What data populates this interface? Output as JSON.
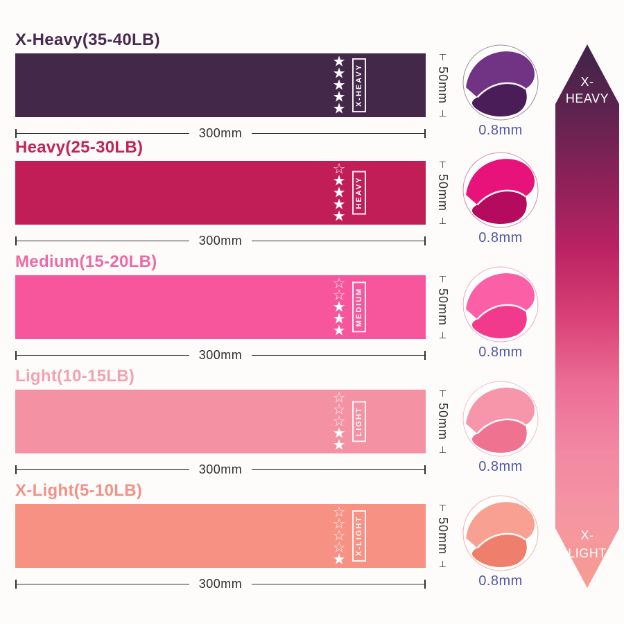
{
  "page": {
    "background": "#fdfcfb"
  },
  "dimension_caps": {
    "top": "⊤",
    "bottom": "⊥"
  },
  "thickness_text_color": "#5157a5",
  "bands": [
    {
      "name": "x-heavy",
      "title": "X-Heavy(35-40LB)",
      "tag": "X-HEAVY",
      "stars_filled": 5,
      "stars_total": 5,
      "color": "#44284a",
      "title_color": "#472a4d",
      "width_label": "300mm",
      "height_label": "50mm",
      "thickness_label": "0.8mm",
      "fold_main": "#713384",
      "fold_shade": "#4b1d58",
      "ring": "#9c8fa0"
    },
    {
      "name": "heavy",
      "title": "Heavy(25-30LB)",
      "tag": "HEAVY",
      "stars_filled": 4,
      "stars_total": 5,
      "color": "#c11e58",
      "title_color": "#c32359",
      "width_label": "300mm",
      "height_label": "50mm",
      "thickness_label": "0.8mm",
      "fold_main": "#e8127b",
      "fold_shade": "#b50b5f",
      "ring": "#d98aa6"
    },
    {
      "name": "medium",
      "title": "Medium(15-20LB)",
      "tag": "MEDIUM",
      "stars_filled": 3,
      "stars_total": 5,
      "color": "#f7569c",
      "title_color": "#ee6aa2",
      "width_label": "300mm",
      "height_label": "50mm",
      "thickness_label": "0.8mm",
      "fold_main": "#fb5fa6",
      "fold_shade": "#f23a8c",
      "ring": "#f0a8c4"
    },
    {
      "name": "light",
      "title": "Light(10-15LB)",
      "tag": "LIGHT",
      "stars_filled": 2,
      "stars_total": 5,
      "color": "#f492a3",
      "title_color": "#f2a2b1",
      "width_label": "300mm",
      "height_label": "50mm",
      "thickness_label": "0.8mm",
      "fold_main": "#f795aa",
      "fold_shade": "#ef7390",
      "ring": "#f3bcc6"
    },
    {
      "name": "x-light",
      "title": "X-Light(5-10LB)",
      "tag": "X-LIGHT",
      "stars_filled": 1,
      "stars_total": 5,
      "color": "#f69184",
      "title_color": "#f29186",
      "width_label": "300mm",
      "height_label": "50mm",
      "thickness_label": "0.8mm",
      "fold_main": "#f8a092",
      "fold_shade": "#ef7e6d",
      "ring": "#f5b3aa"
    }
  ],
  "arrow": {
    "top_line1": "X-",
    "top_line2": "HEAVY",
    "bottom_line1": "X-",
    "bottom_line2": "LIGHT",
    "gradient": [
      "#3f2547",
      "#5f2350",
      "#8d2158",
      "#ba2263",
      "#d84075",
      "#ec6d96",
      "#f288a3",
      "#f596a1",
      "#f89c90"
    ]
  }
}
